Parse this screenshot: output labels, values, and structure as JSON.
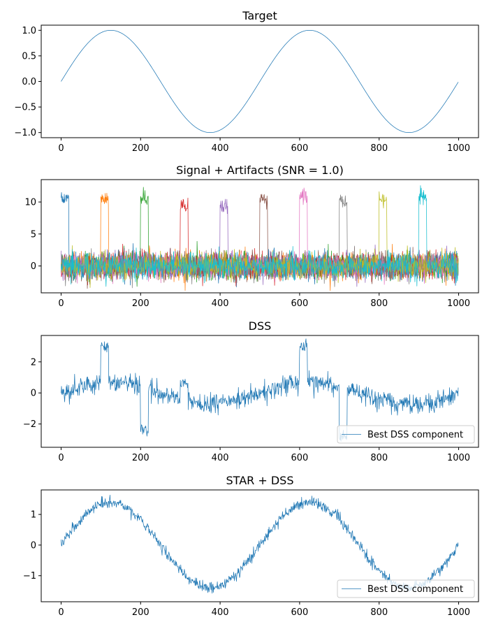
{
  "chart_data": [
    {
      "type": "line",
      "title": "Target",
      "xlabel": "",
      "ylabel": "",
      "xlim": [
        -50,
        1050
      ],
      "ylim": [
        -1.1,
        1.1
      ],
      "xticks": [
        0,
        200,
        400,
        600,
        800,
        1000
      ],
      "yticks": [
        -1.0,
        -0.5,
        0.0,
        0.5,
        1.0
      ],
      "ytick_labels": [
        "−1.0",
        "−0.5",
        "0.0",
        "0.5",
        "1.0"
      ],
      "grid": false,
      "series": [
        {
          "kind": "sine",
          "n": 1000,
          "cycles": 2,
          "amplitude": 1.0,
          "noise": 0,
          "color": "#1f77b4"
        }
      ]
    },
    {
      "type": "line",
      "title": "Signal + Artifacts (SNR = 1.0)",
      "xlabel": "",
      "ylabel": "",
      "xlim": [
        -50,
        1050
      ],
      "ylim": [
        -4.2,
        13.5
      ],
      "xticks": [
        0,
        200,
        400,
        600,
        800,
        1000
      ],
      "yticks": [
        0,
        5,
        10
      ],
      "ytick_labels": [
        "0",
        "5",
        "10"
      ],
      "grid": false,
      "series": [
        {
          "kind": "artifact",
          "artifact_start": 0,
          "artifact_end": 20,
          "artifact_level": 10.5,
          "color": "#1f77b4"
        },
        {
          "kind": "artifact",
          "artifact_start": 100,
          "artifact_end": 120,
          "artifact_level": 10.5,
          "color": "#ff7f0e"
        },
        {
          "kind": "artifact",
          "artifact_start": 200,
          "artifact_end": 220,
          "artifact_level": 10.5,
          "color": "#2ca02c"
        },
        {
          "kind": "artifact",
          "artifact_start": 300,
          "artifact_end": 320,
          "artifact_level": 9.5,
          "color": "#d62728"
        },
        {
          "kind": "artifact",
          "artifact_start": 400,
          "artifact_end": 420,
          "artifact_level": 9.5,
          "color": "#9467bd"
        },
        {
          "kind": "artifact",
          "artifact_start": 500,
          "artifact_end": 520,
          "artifact_level": 10.5,
          "color": "#8c564b"
        },
        {
          "kind": "artifact",
          "artifact_start": 600,
          "artifact_end": 620,
          "artifact_level": 11.0,
          "color": "#e377c2"
        },
        {
          "kind": "artifact",
          "artifact_start": 700,
          "artifact_end": 720,
          "artifact_level": 10.0,
          "color": "#7f7f7f"
        },
        {
          "kind": "artifact",
          "artifact_start": 800,
          "artifact_end": 820,
          "artifact_level": 10.0,
          "color": "#bcbd22"
        },
        {
          "kind": "artifact",
          "artifact_start": 900,
          "artifact_end": 920,
          "artifact_level": 11.0,
          "color": "#17becf"
        }
      ]
    },
    {
      "type": "line",
      "title": "DSS",
      "xlabel": "",
      "ylabel": "",
      "xlim": [
        -50,
        1050
      ],
      "ylim": [
        -3.5,
        3.7
      ],
      "xticks": [
        0,
        200,
        400,
        600,
        800,
        1000
      ],
      "yticks": [
        -2,
        0,
        2
      ],
      "ytick_labels": [
        "−2",
        "0",
        "2"
      ],
      "grid": false,
      "legend": {
        "placement": "lower-right",
        "entries": [
          "Best DSS component"
        ]
      },
      "series": [
        {
          "name": "Best DSS component",
          "kind": "dss",
          "amplitude": 0.7,
          "noise": 0.3,
          "color": "#1f77b4",
          "jumps": [
            {
              "start": 100,
              "end": 120,
              "value": 3.0
            },
            {
              "start": 200,
              "end": 220,
              "value": -2.4
            },
            {
              "start": 300,
              "end": 320,
              "value": 0.7
            },
            {
              "start": 600,
              "end": 620,
              "value": 3.0
            },
            {
              "start": 700,
              "end": 720,
              "value": -2.8
            }
          ]
        }
      ]
    },
    {
      "type": "line",
      "title": "STAR + DSS",
      "xlabel": "",
      "ylabel": "",
      "xlim": [
        -50,
        1050
      ],
      "ylim": [
        -1.85,
        1.8
      ],
      "xticks": [
        0,
        200,
        400,
        600,
        800,
        1000
      ],
      "yticks": [
        -1,
        0,
        1
      ],
      "ytick_labels": [
        "−1",
        "0",
        "1"
      ],
      "grid": false,
      "legend": {
        "placement": "lower-right",
        "entries": [
          "Best DSS component"
        ]
      },
      "series": [
        {
          "name": "Best DSS component",
          "kind": "sine",
          "n": 1000,
          "cycles": 2,
          "amplitude": 1.4,
          "noise": 0.09,
          "color": "#1f77b4"
        }
      ]
    }
  ]
}
